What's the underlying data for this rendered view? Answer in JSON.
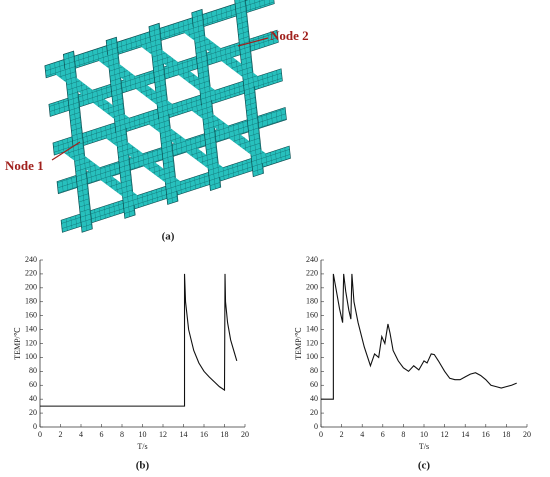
{
  "figure": {
    "label": "(a)",
    "annotations": [
      "Node 2",
      "Node 1"
    ]
  },
  "chart_data": [
    {
      "type": "line",
      "label": "(b)",
      "xlabel": "T/s",
      "ylabel": "TEMP/℃",
      "color": "#111111",
      "x": [
        0,
        14.1,
        14.1,
        14.2,
        14.5,
        15,
        15.5,
        16,
        16.5,
        17,
        17.5,
        18,
        18.05,
        18.1,
        18.3,
        18.6,
        19,
        19.2
      ],
      "values": [
        30,
        30,
        220,
        180,
        140,
        110,
        92,
        80,
        72,
        65,
        58,
        53,
        220,
        180,
        150,
        125,
        105,
        95
      ],
      "xlim": [
        0,
        20
      ],
      "xticks": [
        0,
        2,
        4,
        6,
        8,
        10,
        12,
        14,
        16,
        18,
        20
      ],
      "ylim": [
        0,
        240
      ],
      "yticks": [
        0,
        20,
        40,
        60,
        80,
        100,
        120,
        140,
        160,
        180,
        200,
        220,
        240
      ]
    },
    {
      "type": "line",
      "label": "(c)",
      "xlabel": "T/s",
      "ylabel": "TEMP/℃",
      "color": "#111111",
      "x": [
        0,
        1.2,
        1.2,
        1.5,
        1.8,
        2.1,
        2.2,
        2.4,
        2.7,
        2.9,
        3.0,
        3.2,
        3.6,
        4.2,
        4.8,
        5.2,
        5.6,
        5.9,
        6.2,
        6.5,
        6.7,
        7.0,
        7.5,
        8,
        8.5,
        9,
        9.5,
        10,
        10.3,
        10.7,
        11,
        11.4,
        12,
        12.5,
        13,
        13.5,
        14,
        14.5,
        15,
        15.5,
        16,
        16.5,
        17,
        17.5,
        18,
        18.5,
        19
      ],
      "values": [
        40,
        40,
        220,
        195,
        170,
        150,
        220,
        195,
        168,
        155,
        220,
        180,
        150,
        115,
        88,
        105,
        100,
        130,
        120,
        148,
        135,
        110,
        95,
        85,
        80,
        88,
        82,
        95,
        92,
        105,
        104,
        95,
        80,
        70,
        68,
        68,
        72,
        76,
        78,
        74,
        68,
        60,
        58,
        56,
        58,
        60,
        63
      ],
      "xlim": [
        0,
        20
      ],
      "xticks": [
        0,
        2,
        4,
        6,
        8,
        10,
        12,
        14,
        16,
        18,
        20
      ],
      "ylim": [
        0,
        240
      ],
      "yticks": [
        0,
        20,
        40,
        60,
        80,
        100,
        120,
        140,
        160,
        180,
        200,
        220,
        240
      ]
    }
  ]
}
